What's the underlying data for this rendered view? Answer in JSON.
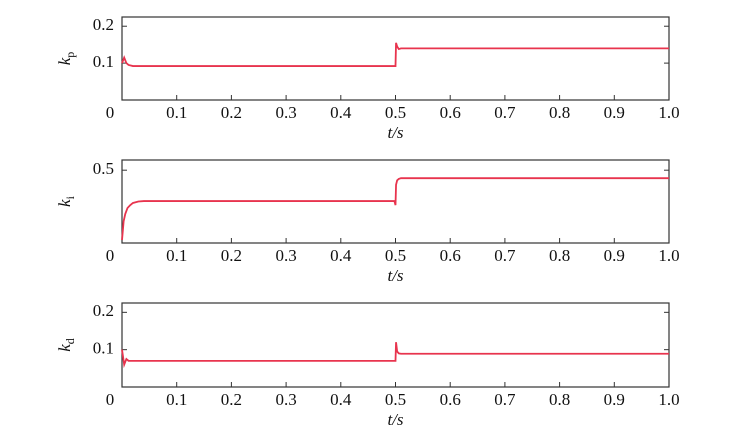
{
  "chart_data": [
    {
      "type": "line",
      "color": "#e8344e",
      "x": [
        0,
        0.004,
        0.008,
        0.012,
        0.02,
        0.5,
        0.501,
        0.503,
        0.506,
        0.51,
        1.0
      ],
      "values": [
        0.1,
        0.115,
        0.1,
        0.095,
        0.092,
        0.092,
        0.155,
        0.145,
        0.138,
        0.14,
        0.14
      ],
      "xlim": [
        0,
        1
      ],
      "xticks": [
        0,
        0.1,
        0.2,
        0.3,
        0.4,
        0.5,
        0.6,
        0.7,
        0.8,
        0.9,
        {
          "value": 1,
          "label": "1.0"
        }
      ],
      "ylim": [
        0,
        0.225
      ],
      "yticks": [
        0.1,
        0.2
      ],
      "xlabel": "t/s",
      "ylabel": {
        "symbol": "k",
        "subscript": "p"
      }
    },
    {
      "type": "line",
      "color": "#e8344e",
      "x": [
        0,
        0.003,
        0.006,
        0.01,
        0.015,
        0.02,
        0.03,
        0.04,
        0.498,
        0.5,
        0.501,
        0.503,
        0.506,
        0.51,
        1.0
      ],
      "values": [
        0.02,
        0.15,
        0.2,
        0.24,
        0.26,
        0.275,
        0.285,
        0.288,
        0.288,
        0.26,
        0.4,
        0.43,
        0.44,
        0.445,
        0.445
      ],
      "xlim": [
        0,
        1
      ],
      "xticks": [
        0,
        0.1,
        0.2,
        0.3,
        0.4,
        0.5,
        0.6,
        0.7,
        0.8,
        0.9,
        {
          "value": 1,
          "label": "1.0"
        }
      ],
      "ylim": [
        0,
        0.57
      ],
      "yticks": [
        0.5
      ],
      "xlabel": "t/s",
      "ylabel": {
        "symbol": "k",
        "subscript": "i"
      }
    },
    {
      "type": "line",
      "color": "#e8344e",
      "x": [
        0,
        0.004,
        0.008,
        0.012,
        0.02,
        0.5,
        0.501,
        0.503,
        0.506,
        0.51,
        1.0
      ],
      "values": [
        0.1,
        0.06,
        0.075,
        0.07,
        0.07,
        0.07,
        0.12,
        0.095,
        0.09,
        0.089,
        0.089
      ],
      "xlim": [
        0,
        1
      ],
      "xticks": [
        0,
        0.1,
        0.2,
        0.3,
        0.4,
        0.5,
        0.6,
        0.7,
        0.8,
        0.9,
        {
          "value": 1,
          "label": "1.0"
        }
      ],
      "ylim": [
        0,
        0.225
      ],
      "yticks": [
        0.1,
        0.2
      ],
      "xlabel": "t/s",
      "ylabel": {
        "symbol": "k",
        "subscript": "d"
      }
    }
  ]
}
